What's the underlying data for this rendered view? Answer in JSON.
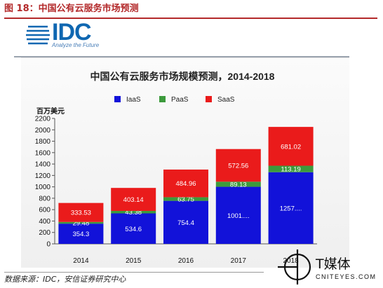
{
  "figure_title": "图 18：中国公有云服务市场预测",
  "logo": {
    "brand": "IDC",
    "tagline": "Analyze the Future"
  },
  "source_note": "数据来源：IDC，安信证券研究中心",
  "watermark": {
    "text": "T媒体",
    "sub": "CNITEYES.COM"
  },
  "colors": {
    "IaaS": "#1212d9",
    "PaaS": "#3c9a3c",
    "SaaS": "#ea1b1b",
    "accent": "#b3292a"
  },
  "chart_data": {
    "type": "bar",
    "stacked": true,
    "title": "中国公有云服务市场规模预测，2014-2018",
    "ylabel": "百万美元",
    "xlabel": "",
    "ylim": [
      0,
      2200
    ],
    "yticks": [
      0,
      200,
      400,
      600,
      800,
      1000,
      1200,
      1400,
      1600,
      1800,
      2000,
      2200
    ],
    "categories": [
      "2014",
      "2015",
      "2016",
      "2017",
      "2018"
    ],
    "legend_position": "top",
    "series": [
      {
        "name": "IaaS",
        "values": [
          354.3,
          534.6,
          754.4,
          1001,
          1257
        ],
        "labels": [
          "354.3",
          "534.6",
          "754.4",
          "1001....",
          "1257...."
        ]
      },
      {
        "name": "PaaS",
        "values": [
          29.48,
          43.38,
          63.75,
          89.13,
          113.19
        ],
        "labels": [
          "29.48",
          "43.38",
          "63.75",
          "89.13",
          "113.19"
        ]
      },
      {
        "name": "SaaS",
        "values": [
          333.53,
          403.14,
          484.96,
          572.56,
          681.02
        ],
        "labels": [
          "333.53",
          "403.14",
          "484.96",
          "572.56",
          "681.02"
        ]
      }
    ]
  }
}
